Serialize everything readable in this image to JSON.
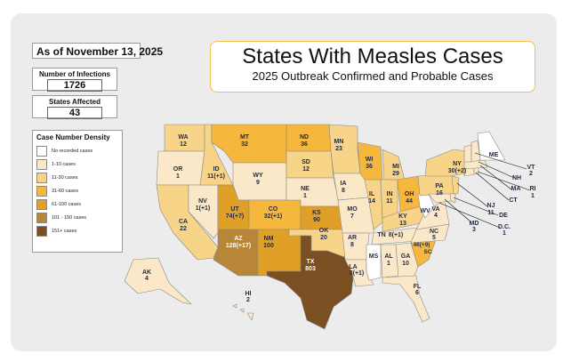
{
  "header": {
    "date": "As of November 13, 2025"
  },
  "stats": {
    "infections_label": "Number of Infections",
    "infections_value": "1726",
    "states_label": "States Affected",
    "states_value": "43"
  },
  "title": {
    "main": "States With Measles Cases",
    "sub": "2025 Outbreak Confirmed and Probable Cases"
  },
  "legend": {
    "title": "Case Number Density",
    "items": [
      {
        "label": "No recorded cases",
        "color": "#ffffff"
      },
      {
        "label": "1-10 cases",
        "color": "#fbe8c8"
      },
      {
        "label": "11-30 cases",
        "color": "#f7d488"
      },
      {
        "label": "31-60 cases",
        "color": "#f5b73c"
      },
      {
        "label": "61-100 cases",
        "color": "#e0a028"
      },
      {
        "label": "101 - 150 cases",
        "color": "#b88638"
      },
      {
        "label": "151+ cases",
        "color": "#7a4f22"
      }
    ]
  },
  "states": {
    "WA": {
      "abbr": "WA",
      "cases": "12",
      "color": "#f7d488"
    },
    "OR": {
      "abbr": "OR",
      "cases": "1",
      "color": "#fbe8c8"
    },
    "CA": {
      "abbr": "CA",
      "cases": "22",
      "color": "#f7d488"
    },
    "NV": {
      "abbr": "NV",
      "cases": "1(+1)",
      "color": "#fbe8c8"
    },
    "ID": {
      "abbr": "ID",
      "cases": "11(+1)",
      "color": "#f7d488"
    },
    "MT": {
      "abbr": "MT",
      "cases": "32",
      "color": "#f5b73c"
    },
    "WY": {
      "abbr": "WY",
      "cases": "9",
      "color": "#fbe8c8"
    },
    "UT": {
      "abbr": "UT",
      "cases": "74(+7)",
      "color": "#e0a028"
    },
    "AZ": {
      "abbr": "AZ",
      "cases": "128(+17)",
      "color": "#b88638"
    },
    "CO": {
      "abbr": "CO",
      "cases": "32(+1)",
      "color": "#f5b73c"
    },
    "NM": {
      "abbr": "NM",
      "cases": "100",
      "color": "#e0a028"
    },
    "ND": {
      "abbr": "ND",
      "cases": "36",
      "color": "#f5b73c"
    },
    "SD": {
      "abbr": "SD",
      "cases": "12",
      "color": "#f7d488"
    },
    "NE": {
      "abbr": "NE",
      "cases": "1",
      "color": "#fbe8c8"
    },
    "KS": {
      "abbr": "KS",
      "cases": "90",
      "color": "#e0a028"
    },
    "OK": {
      "abbr": "OK",
      "cases": "20",
      "color": "#f7d488"
    },
    "TX": {
      "abbr": "TX",
      "cases": "803",
      "color": "#7a4f22"
    },
    "MN": {
      "abbr": "MN",
      "cases": "23",
      "color": "#f7d488"
    },
    "IA": {
      "abbr": "IA",
      "cases": "8",
      "color": "#fbe8c8"
    },
    "MO": {
      "abbr": "MO",
      "cases": "7",
      "color": "#fbe8c8"
    },
    "AR": {
      "abbr": "AR",
      "cases": "8",
      "color": "#fbe8c8"
    },
    "LA": {
      "abbr": "LA",
      "cases": "3(+1)",
      "color": "#fbe8c8"
    },
    "WI": {
      "abbr": "WI",
      "cases": "36",
      "color": "#f5b73c"
    },
    "IL": {
      "abbr": "IL",
      "cases": "14",
      "color": "#f7d488"
    },
    "MI": {
      "abbr": "MI",
      "cases": "29",
      "color": "#f7d488"
    },
    "IN": {
      "abbr": "IN",
      "cases": "11",
      "color": "#f7d488"
    },
    "OH": {
      "abbr": "OH",
      "cases": "44",
      "color": "#f5b73c"
    },
    "KY": {
      "abbr": "KY",
      "cases": "13",
      "color": "#f7d488"
    },
    "TN": {
      "abbr": "TN",
      "cases": "8(+1)",
      "color": "#fbe8c8"
    },
    "MS": {
      "abbr": "MS",
      "cases": "",
      "color": "#ffffff"
    },
    "AL": {
      "abbr": "AL",
      "cases": "1",
      "color": "#fbe8c8"
    },
    "GA": {
      "abbr": "GA",
      "cases": "10",
      "color": "#fbe8c8"
    },
    "FL": {
      "abbr": "FL",
      "cases": "6",
      "color": "#fbe8c8"
    },
    "SC": {
      "abbr": "SC",
      "cases": "46(+9)",
      "color": "#f5b73c"
    },
    "NC": {
      "abbr": "NC",
      "cases": "5",
      "color": "#fbe8c8"
    },
    "VA": {
      "abbr": "VA",
      "cases": "4",
      "color": "#fbe8c8"
    },
    "WV": {
      "abbr": "WV",
      "cases": "",
      "color": "#ffffff"
    },
    "PA": {
      "abbr": "PA",
      "cases": "16",
      "color": "#f7d488"
    },
    "NY": {
      "abbr": "NY",
      "cases": "30(+2)",
      "color": "#f7d488"
    },
    "ME": {
      "abbr": "ME",
      "cases": "",
      "color": "#ffffff"
    },
    "VT": {
      "abbr": "VT",
      "cases": "2",
      "color": "#fbe8c8"
    },
    "NH": {
      "abbr": "NH",
      "cases": "",
      "color": "#fbe8c8"
    },
    "MA": {
      "abbr": "MA",
      "cases": "",
      "color": "#fbe8c8"
    },
    "RI": {
      "abbr": "RI",
      "cases": "1",
      "color": "#fbe8c8"
    },
    "CT": {
      "abbr": "CT",
      "cases": "",
      "color": "#fbe8c8"
    },
    "NJ": {
      "abbr": "NJ",
      "cases": "11",
      "color": "#f7d488"
    },
    "DE": {
      "abbr": "DE",
      "cases": "",
      "color": "#fbe8c8"
    },
    "MD": {
      "abbr": "MD",
      "cases": "3",
      "color": "#fbe8c8"
    },
    "DC": {
      "abbr": "D.C.",
      "cases": "1",
      "color": "#fbe8c8"
    },
    "AK": {
      "abbr": "AK",
      "cases": "4",
      "color": "#fbe8c8"
    },
    "HI": {
      "abbr": "HI",
      "cases": "2",
      "color": "#fbe8c8"
    }
  }
}
